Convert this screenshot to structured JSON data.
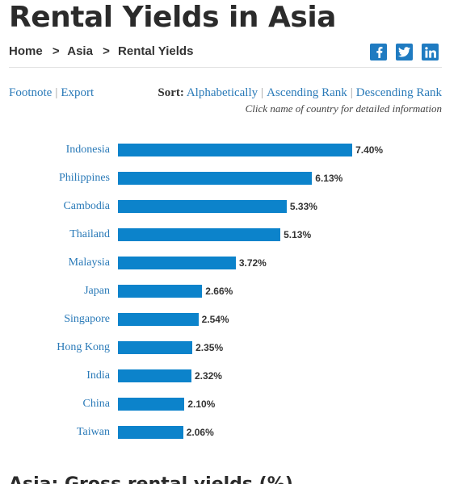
{
  "page": {
    "title": "Rental Yields in Asia"
  },
  "breadcrumb": {
    "items": [
      "Home",
      "Asia",
      "Rental Yields"
    ],
    "separator": ">"
  },
  "social": {
    "icons": [
      "facebook-icon",
      "twitter-icon",
      "linkedin-icon"
    ],
    "color": "#1f7bc1"
  },
  "toolbar": {
    "footnote": "Footnote",
    "export": "Export",
    "sort_label": "Sort:",
    "sort_options": [
      "Alphabetically",
      "Ascending Rank",
      "Descending Rank"
    ],
    "hint": "Click name of country for detailed information"
  },
  "chart_data": {
    "type": "bar",
    "orientation": "horizontal",
    "bar_color": "#0c83cb",
    "categories": [
      "Indonesia",
      "Philippines",
      "Cambodia",
      "Thailand",
      "Malaysia",
      "Japan",
      "Singapore",
      "Hong Kong",
      "India",
      "China",
      "Taiwan"
    ],
    "values": [
      7.4,
      6.13,
      5.33,
      5.13,
      3.72,
      2.66,
      2.54,
      2.35,
      2.32,
      2.1,
      2.06
    ],
    "value_labels": [
      "7.40%",
      "6.13%",
      "5.33%",
      "5.13%",
      "3.72%",
      "2.66%",
      "2.54%",
      "2.35%",
      "2.32%",
      "2.10%",
      "2.06%"
    ]
  },
  "next_section": {
    "heading": "Asia: Gross rental yields (%)"
  }
}
